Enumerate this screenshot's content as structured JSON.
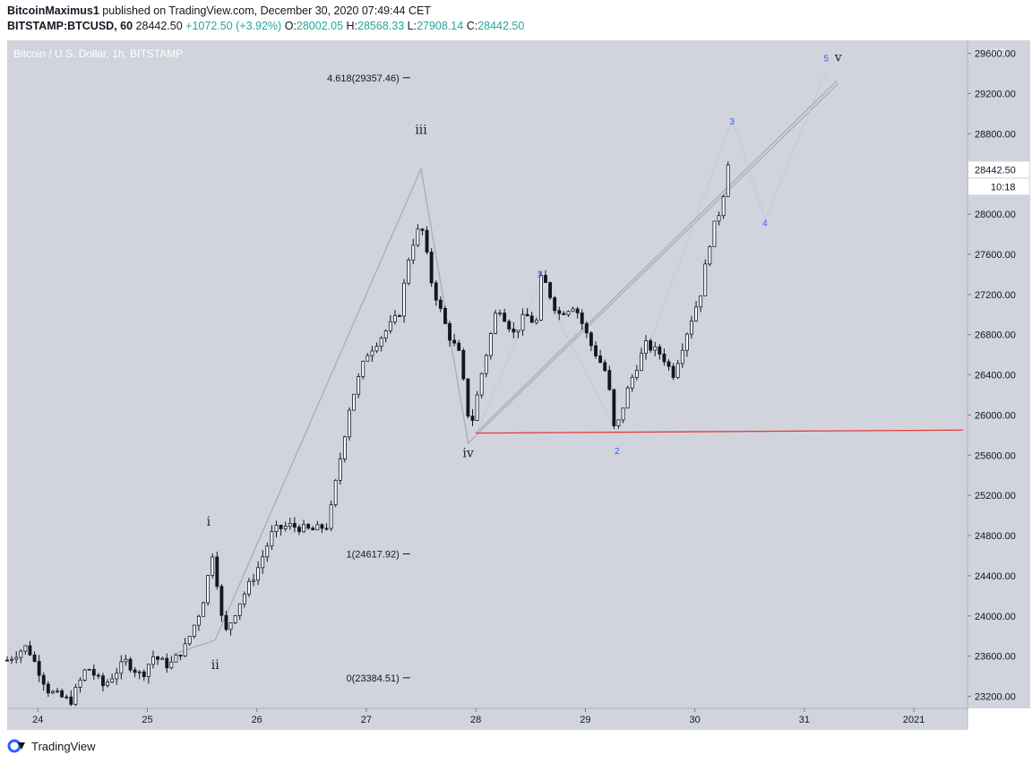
{
  "header": {
    "author": "BitcoinMaximus1",
    "published_text": "published on TradingView.com, December 30, 2020 07:49:44 CET",
    "symbol": "BITSTAMP:BTCUSD, 60",
    "last_price": "28442.50",
    "change": "+1072.50 (+3.92%)",
    "open_label": "O:",
    "open": "28002.05",
    "high_label": "H:",
    "high": "28568.33",
    "low_label": "L:",
    "low": "27908.14",
    "close_label": "C:",
    "close": "28442.50"
  },
  "footer": {
    "brand": "TradingView"
  },
  "chart_data": {
    "type": "candlestick",
    "title": "Bitcoin / U.S. Dollar, 1h, BITSTAMP",
    "currency_label": "USD",
    "y_ticks": [
      23200,
      23600,
      24000,
      24400,
      24800,
      25200,
      25600,
      26000,
      26400,
      26800,
      27200,
      27600,
      28000,
      28800,
      29200,
      29600
    ],
    "y_tick_labels": [
      "23200.00",
      "23600.00",
      "24000.00",
      "24400.00",
      "24800.00",
      "25200.00",
      "25600.00",
      "26000.00",
      "26400.00",
      "26800.00",
      "27200.00",
      "27600.00",
      "28000.00",
      "28800.00",
      "29200.00",
      "29600.00"
    ],
    "ylim": [
      23080,
      29730
    ],
    "x_tick_labels": [
      "24",
      "25",
      "26",
      "27",
      "28",
      "29",
      "30",
      "31",
      "2021"
    ],
    "x_tick_days": [
      24,
      25,
      26,
      27,
      28,
      29,
      30,
      31,
      32
    ],
    "xlim": [
      23.72,
      32.49
    ],
    "last_price_label": "28442.50",
    "countdown_label": "10:18",
    "price_path": [
      [
        23.72,
        23560
      ],
      [
        23.9,
        23700
      ],
      [
        24.1,
        23250
      ],
      [
        24.3,
        23150
      ],
      [
        24.45,
        23500
      ],
      [
        24.6,
        23300
      ],
      [
        24.8,
        23550
      ],
      [
        24.95,
        23400
      ],
      [
        25.05,
        23600
      ],
      [
        25.2,
        23500
      ],
      [
        25.35,
        23700
      ],
      [
        25.5,
        24100
      ],
      [
        25.6,
        24650
      ],
      [
        25.7,
        23800
      ],
      [
        25.85,
        24150
      ],
      [
        26.0,
        24450
      ],
      [
        26.15,
        24850
      ],
      [
        26.3,
        24900
      ],
      [
        26.5,
        24850
      ],
      [
        26.65,
        24900
      ],
      [
        26.75,
        25500
      ],
      [
        26.85,
        26100
      ],
      [
        27.0,
        26600
      ],
      [
        27.15,
        26800
      ],
      [
        27.3,
        27000
      ],
      [
        27.4,
        27650
      ],
      [
        27.5,
        27900
      ],
      [
        27.6,
        27300
      ],
      [
        27.75,
        26800
      ],
      [
        27.85,
        26600
      ],
      [
        27.95,
        25850
      ],
      [
        28.05,
        26400
      ],
      [
        28.2,
        27100
      ],
      [
        28.35,
        26800
      ],
      [
        28.45,
        27000
      ],
      [
        28.55,
        26900
      ],
      [
        28.6,
        27400
      ],
      [
        28.75,
        27000
      ],
      [
        28.9,
        27100
      ],
      [
        29.05,
        26700
      ],
      [
        29.2,
        26400
      ],
      [
        29.27,
        25800
      ],
      [
        29.4,
        26300
      ],
      [
        29.55,
        26700
      ],
      [
        29.7,
        26600
      ],
      [
        29.8,
        26400
      ],
      [
        29.95,
        26900
      ],
      [
        30.05,
        27200
      ],
      [
        30.15,
        27800
      ],
      [
        30.25,
        28100
      ],
      [
        30.3,
        28568
      ],
      [
        30.31,
        28442
      ]
    ],
    "annotations": {
      "waves": [
        {
          "label": "i",
          "day": 25.56,
          "price": 24900
        },
        {
          "label": "ii",
          "day": 25.62,
          "price": 23470
        },
        {
          "label": "iii",
          "day": 27.5,
          "price": 28800
        },
        {
          "label": "iv",
          "day": 27.93,
          "price": 25580
        },
        {
          "label": "v",
          "day": 31.31,
          "price": 29520
        }
      ],
      "sub_waves": [
        {
          "label": "1",
          "day": 28.58,
          "price": 27370
        },
        {
          "label": "2",
          "day": 29.29,
          "price": 25610
        },
        {
          "label": "3",
          "day": 30.34,
          "price": 28890
        },
        {
          "label": "4",
          "day": 30.64,
          "price": 27880
        },
        {
          "label": "5",
          "day": 31.2,
          "price": 29520
        }
      ],
      "fib_levels": [
        {
          "label": "4.618(29357.46)",
          "price": 29357.46,
          "day_end": 27.4
        },
        {
          "label": "1(24617.92)",
          "price": 24617.92,
          "day_end": 27.4
        },
        {
          "label": "0(23384.51)",
          "price": 23384.51,
          "day_end": 27.4
        }
      ],
      "support_line": {
        "start": [
          28.0,
          25820
        ],
        "end": [
          32.45,
          25850
        ],
        "color": "#e53935"
      },
      "channel_line": {
        "start": [
          28.0,
          25820
        ],
        "end": [
          31.3,
          29330
        ]
      },
      "main_wave_path": [
        [
          25.24,
          23620
        ],
        [
          25.62,
          23760
        ],
        [
          27.5,
          28450
        ],
        [
          27.93,
          25720
        ],
        [
          31.31,
          29300
        ]
      ],
      "sub_wave_path": [
        [
          28.0,
          25800
        ],
        [
          28.58,
          27300
        ],
        [
          29.29,
          25830
        ],
        [
          30.34,
          28940
        ],
        [
          30.64,
          27950
        ],
        [
          31.2,
          29420
        ]
      ]
    }
  }
}
